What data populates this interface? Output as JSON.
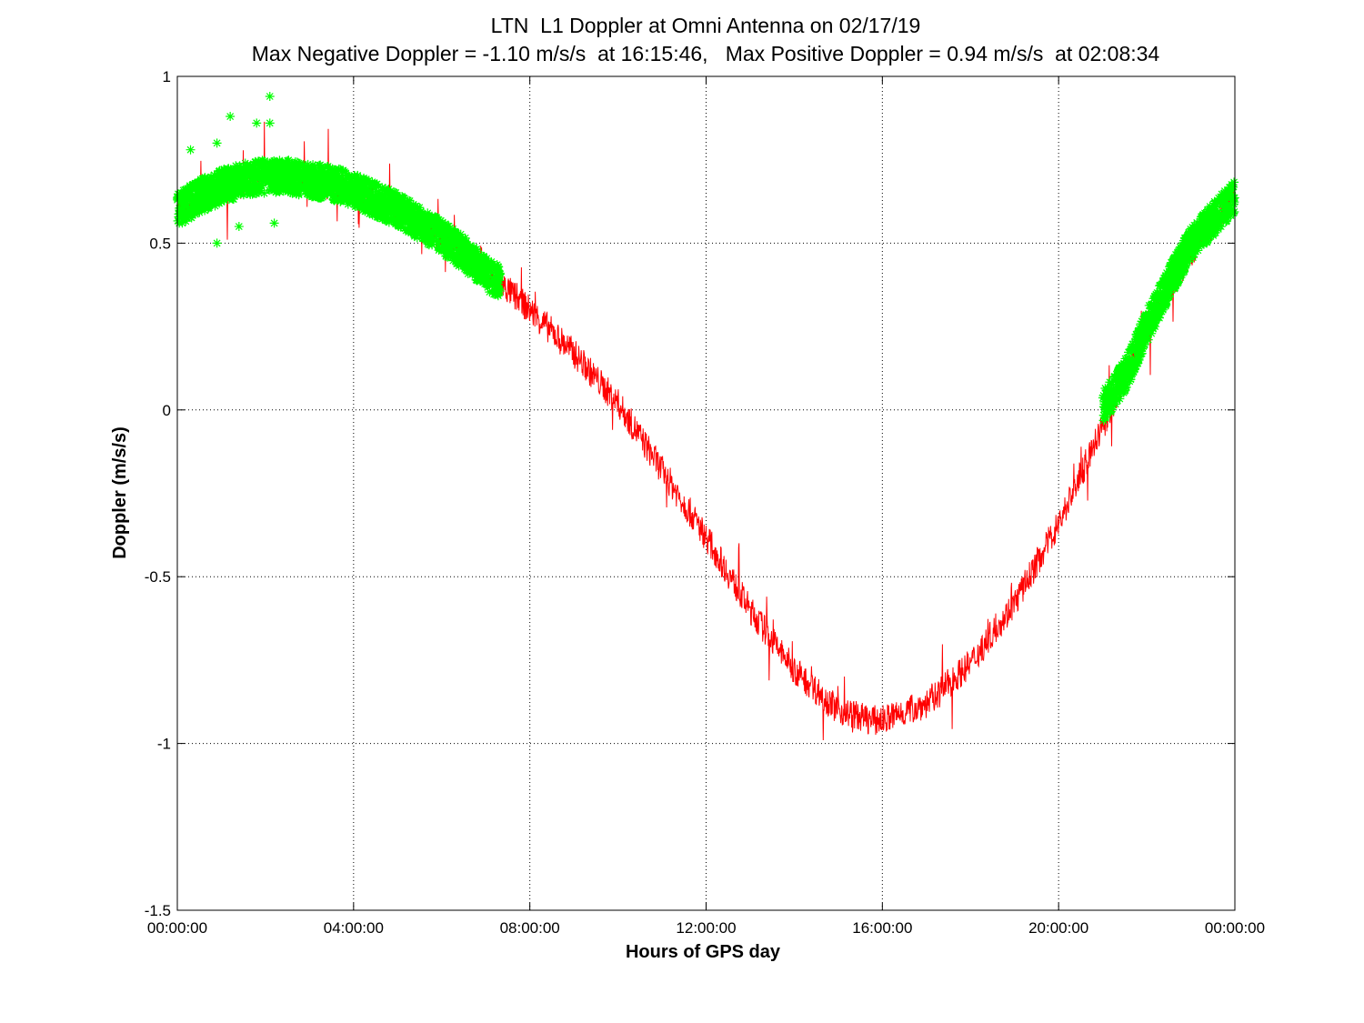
{
  "chart_data": {
    "type": "scatter",
    "title": "LTN  L1 Doppler at Omni Antenna on 02/17/19",
    "subtitle": "Max Negative Doppler = -1.10 m/s/s  at 16:15:46,   Max Positive Doppler = 0.94 m/s/s  at 02:08:34",
    "xlabel": "Hours of GPS day",
    "ylabel": "Doppler (m/s/s)",
    "xlim": [
      0,
      24
    ],
    "ylim": [
      -1.5,
      1
    ],
    "grid": true,
    "x_ticks": [
      0,
      4,
      8,
      12,
      16,
      20,
      24
    ],
    "x_tick_labels": [
      "00:00:00",
      "04:00:00",
      "08:00:00",
      "12:00:00",
      "16:00:00",
      "20:00:00",
      "00:00:00"
    ],
    "y_ticks": [
      -1.5,
      -1,
      -0.5,
      0,
      0.5,
      1
    ],
    "y_tick_labels": [
      "-1.5",
      "-1",
      "-0.5",
      "0",
      "0.5",
      "1"
    ],
    "max_negative": {
      "value": -1.1,
      "time": "16:15:46"
    },
    "max_positive": {
      "value": 0.94,
      "time": "02:08:34"
    },
    "series": [
      {
        "color": "#ff0000",
        "style": "line",
        "x": [
          0,
          1,
          2,
          3,
          4,
          5,
          6,
          7,
          7.33,
          8,
          9,
          10,
          11,
          12,
          13,
          14,
          15,
          15.75,
          16,
          17,
          18,
          19,
          20,
          21,
          22,
          23,
          24
        ],
        "y": [
          0.6,
          0.66,
          0.7,
          0.69,
          0.66,
          0.6,
          0.52,
          0.41,
          0.38,
          0.3,
          0.17,
          0.02,
          -0.18,
          -0.38,
          -0.6,
          -0.78,
          -0.9,
          -0.93,
          -0.93,
          -0.88,
          -0.76,
          -0.58,
          -0.34,
          -0.05,
          0.25,
          0.47,
          0.64
        ]
      },
      {
        "color": "#00ff00",
        "style": "marker",
        "marker": "asterisk",
        "segments": [
          {
            "x": [
              0,
              0.5,
              1,
              1.5,
              2,
              2.5,
              3,
              3.5,
              4,
              4.5,
              5,
              5.5,
              6,
              6.5,
              7,
              7.33
            ],
            "y": [
              0.6,
              0.64,
              0.67,
              0.69,
              0.7,
              0.7,
              0.69,
              0.68,
              0.66,
              0.63,
              0.6,
              0.56,
              0.52,
              0.47,
              0.41,
              0.38
            ]
          },
          {
            "x": [
              21.0,
              21.5,
              22.0,
              22.5,
              23.0,
              23.5,
              24.0
            ],
            "y": [
              0.01,
              0.1,
              0.25,
              0.38,
              0.5,
              0.57,
              0.64
            ]
          }
        ],
        "outliers": {
          "x": [
            0.3,
            0.9,
            1.2,
            1.8,
            2.1,
            2.1,
            0.9,
            1.4,
            2.2
          ],
          "y": [
            0.78,
            0.8,
            0.88,
            0.86,
            0.94,
            0.86,
            0.5,
            0.55,
            0.56
          ]
        }
      }
    ]
  }
}
